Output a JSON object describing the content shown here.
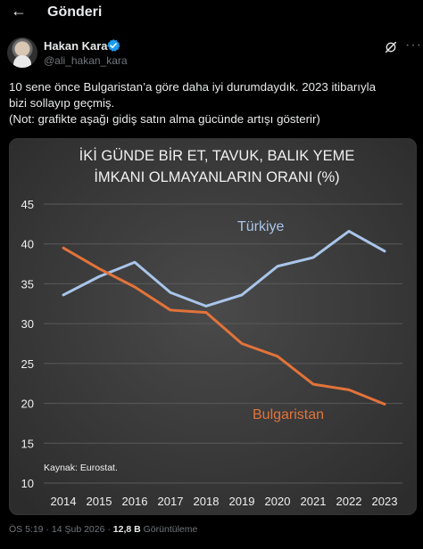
{
  "header": {
    "title": "Gönderi",
    "back_icon": "arrow-left-icon"
  },
  "author": {
    "name": "Hakan Kara",
    "handle": "@ali_hakan_kara",
    "verified_color": "#1d9bf0"
  },
  "tweet": {
    "lines": [
      "10 sene önce Bulgaristan’a göre daha iyi durumdaydık. 2023 itibarıyla",
      "bizi sollayıp geçmiş.",
      "(Not: grafikte aşağı gidiş satın alma gücünde artışı gösterir)"
    ]
  },
  "chart_data": {
    "type": "line",
    "title_lines": [
      "İKİ GÜNDE BİR ET, TAVUK, BALIK YEME",
      "İMKANI OLMAYANLARIN ORANI (%)"
    ],
    "x": [
      2014,
      2015,
      2016,
      2017,
      2018,
      2019,
      2020,
      2021,
      2022,
      2023
    ],
    "yticks": [
      10,
      15,
      20,
      25,
      30,
      35,
      40,
      45
    ],
    "ylim": [
      10,
      45
    ],
    "grid": true,
    "source": "Kaynak: Eurostat.",
    "series": [
      {
        "name": "Türkiye",
        "color": "#a9c5ea",
        "values": [
          33.6,
          35.9,
          37.7,
          33.9,
          32.2,
          33.6,
          37.2,
          38.3,
          41.6,
          39.1
        ]
      },
      {
        "name": "Bulgaristan",
        "color": "#e2733a",
        "values": [
          39.5,
          36.9,
          34.6,
          31.7,
          31.4,
          27.5,
          25.9,
          22.4,
          21.7,
          19.9
        ]
      }
    ]
  },
  "footer": {
    "time": "ÖS 5:19",
    "sep": "·",
    "date": "14 Şub 2026",
    "views_count": "12,8 B",
    "views_label": "Görüntüleme"
  }
}
